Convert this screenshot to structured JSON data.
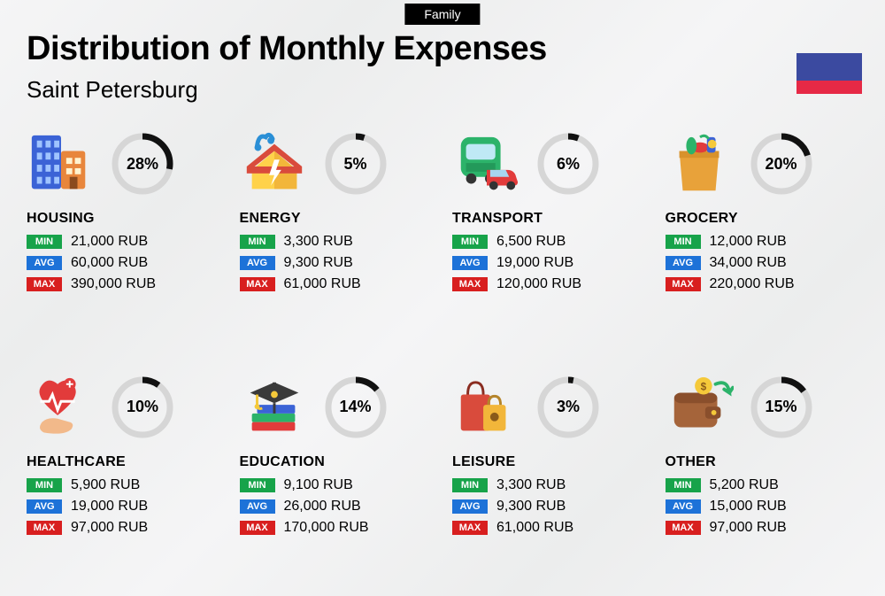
{
  "header": {
    "pill": "Family",
    "title": "Distribution of Monthly Expenses",
    "subtitle": "Saint Petersburg"
  },
  "flag": {
    "stripes": [
      "#3b4aa0",
      "#3b4aa0",
      "#e62946"
    ]
  },
  "labels": {
    "min": "MIN",
    "avg": "AVG",
    "max": "MAX"
  },
  "tag_colors": {
    "min": "#17a34a",
    "avg": "#1d72d8",
    "max": "#d81f1f"
  },
  "ring": {
    "bg_color": "#d6d6d6",
    "fg_color": "#111111",
    "stroke_width": 7,
    "radius": 31
  },
  "categories": [
    {
      "key": "housing",
      "name": "HOUSING",
      "percent": 28,
      "min": "21,000 RUB",
      "avg": "60,000 RUB",
      "max": "390,000 RUB"
    },
    {
      "key": "energy",
      "name": "ENERGY",
      "percent": 5,
      "min": "3,300 RUB",
      "avg": "9,300 RUB",
      "max": "61,000 RUB"
    },
    {
      "key": "transport",
      "name": "TRANSPORT",
      "percent": 6,
      "min": "6,500 RUB",
      "avg": "19,000 RUB",
      "max": "120,000 RUB"
    },
    {
      "key": "grocery",
      "name": "GROCERY",
      "percent": 20,
      "min": "12,000 RUB",
      "avg": "34,000 RUB",
      "max": "220,000 RUB"
    },
    {
      "key": "healthcare",
      "name": "HEALTHCARE",
      "percent": 10,
      "min": "5,900 RUB",
      "avg": "19,000 RUB",
      "max": "97,000 RUB"
    },
    {
      "key": "education",
      "name": "EDUCATION",
      "percent": 14,
      "min": "9,100 RUB",
      "avg": "26,000 RUB",
      "max": "170,000 RUB"
    },
    {
      "key": "leisure",
      "name": "LEISURE",
      "percent": 3,
      "min": "3,300 RUB",
      "avg": "9,300 RUB",
      "max": "61,000 RUB"
    },
    {
      "key": "other",
      "name": "OTHER",
      "percent": 15,
      "min": "5,200 RUB",
      "avg": "15,000 RUB",
      "max": "97,000 RUB"
    }
  ],
  "icons": {
    "housing": "buildings-icon",
    "energy": "house-lightning-icon",
    "transport": "bus-car-icon",
    "grocery": "grocery-bag-icon",
    "healthcare": "heart-hand-icon",
    "education": "graduation-books-icon",
    "leisure": "shopping-bags-icon",
    "other": "wallet-icon"
  }
}
